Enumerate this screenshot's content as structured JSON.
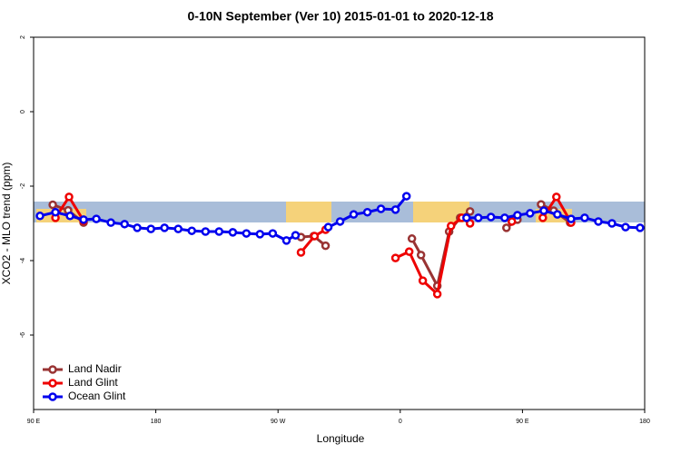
{
  "chart_data": {
    "type": "line",
    "title": "0-10N September (Ver 10)   2015-01-01 to 2020-12-18",
    "x_label": "Longitude",
    "y_label": "XCO2 - MLO trend (ppm)",
    "xlim": [
      90,
      540
    ],
    "xticks": [
      {
        "value": 90,
        "label": "90 E"
      },
      {
        "value": 180,
        "label": "180"
      },
      {
        "value": 270,
        "label": "90 W"
      },
      {
        "value": 360,
        "label": "0"
      },
      {
        "value": 450,
        "label": "90 E"
      },
      {
        "value": 540,
        "label": "180"
      }
    ],
    "ylim": [
      -8,
      2
    ],
    "yticks": [
      2,
      0,
      -2,
      -4,
      -6
    ],
    "legend": "bottom-left",
    "series": [
      {
        "name": "Land Nadir",
        "color": "#993333",
        "x": [
          104.1,
          115.4,
          126.8,
          null,
          286.9,
          296.3,
          305,
          null,
          368.6,
          375.3,
          387.3,
          396,
          404.1,
          411.4,
          null,
          438.2,
          446.3,
          null,
          463.7,
          473,
          485.1
        ],
        "values": [
          -2.5,
          -2.65,
          -2.98,
          null,
          -3.37,
          -3.34,
          -3.6,
          null,
          -3.41,
          -3.85,
          -4.68,
          -3.22,
          -2.85,
          -2.68,
          null,
          -3.12,
          -2.9,
          null,
          -2.49,
          -2.66,
          -2.98
        ]
      },
      {
        "name": "Land Glint",
        "color": "#ee0000",
        "x": [
          106.1,
          116.1,
          126.8,
          null,
          286.9,
          296.9,
          305,
          null,
          356.5,
          366.6,
          376.6,
          387.3,
          397.4,
          405.4,
          411.4,
          null,
          442.2,
          null,
          465,
          475,
          485.8
        ],
        "values": [
          -2.85,
          -2.29,
          -2.93,
          null,
          -3.78,
          -3.34,
          -3.17,
          null,
          -3.93,
          -3.76,
          -4.54,
          -4.9,
          -3.07,
          -2.85,
          -3.0,
          null,
          -2.95,
          null,
          -2.85,
          -2.29,
          -2.98
        ]
      },
      {
        "name": "Ocean Glint",
        "color": "#0000ee",
        "x": [
          94.7,
          106.1,
          116.8,
          126.8,
          136.2,
          146.9,
          157,
          166.3,
          176.4,
          186.4,
          196.5,
          206.5,
          216.6,
          226.6,
          236.7,
          246.7,
          256.7,
          266.1,
          276.2,
          282.9,
          null,
          307,
          315.7,
          325.7,
          335.8,
          345.8,
          356.5,
          364.6,
          null,
          408.8,
          417.5,
          426.8,
          436.9,
          446.3,
          455.6,
          465.7,
          475.7,
          485.8,
          495.8,
          505.9,
          515.9,
          525.9,
          536.6
        ],
        "values": [
          -2.8,
          -2.7,
          -2.8,
          -2.9,
          -2.88,
          -2.98,
          -3.02,
          -3.12,
          -3.15,
          -3.12,
          -3.15,
          -3.2,
          -3.22,
          -3.22,
          -3.24,
          -3.27,
          -3.29,
          -3.27,
          -3.46,
          -3.32,
          null,
          -3.1,
          -2.95,
          -2.76,
          -2.7,
          -2.61,
          -2.63,
          -2.27,
          null,
          -2.85,
          -2.85,
          -2.83,
          -2.85,
          -2.78,
          -2.73,
          -2.66,
          -2.76,
          -2.88,
          -2.85,
          -2.95,
          -3.0,
          -3.1,
          -3.12
        ]
      }
    ]
  }
}
